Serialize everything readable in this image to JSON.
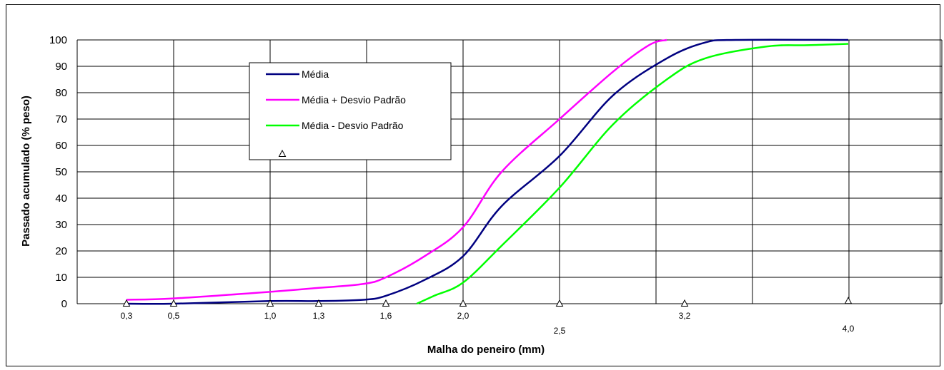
{
  "chart_data": {
    "type": "line",
    "xlabel": "Malha do peneiro (mm)",
    "ylabel": "Passado acumulado (% peso)",
    "ylim": [
      0,
      100
    ],
    "yticks": [
      "0",
      "10",
      "20",
      "30",
      "40",
      "50",
      "60",
      "70",
      "80",
      "90",
      "100"
    ],
    "grid": true,
    "legend_position": "top-left",
    "x_tick_labels": [
      {
        "label": "0,3",
        "x": 0.3
      },
      {
        "label": "0,5",
        "x": 0.5
      },
      {
        "label": "1,0",
        "x": 1.0
      },
      {
        "label": "1,3",
        "x": 1.3
      },
      {
        "label": "1,6",
        "x": 1.6
      },
      {
        "label": "2,0",
        "x": 2.0
      },
      {
        "label": "2,5",
        "x": 2.5
      },
      {
        "label": "3,2",
        "x": 3.2
      },
      {
        "label": "4,0",
        "x": 4.0
      }
    ],
    "series": [
      {
        "name": "Média",
        "color": "#000080",
        "points": [
          [
            0.3,
            0
          ],
          [
            0.5,
            0
          ],
          [
            1.0,
            1
          ],
          [
            1.3,
            1
          ],
          [
            1.5,
            1.5
          ],
          [
            1.6,
            3
          ],
          [
            1.8,
            9
          ],
          [
            2.0,
            18
          ],
          [
            2.2,
            37
          ],
          [
            2.5,
            56
          ],
          [
            2.8,
            79
          ],
          [
            3.1,
            93
          ],
          [
            3.3,
            99
          ],
          [
            3.45,
            100
          ],
          [
            4.0,
            100
          ]
        ]
      },
      {
        "name": "Média + Desvio Padrão",
        "color": "#FF00FF",
        "points": [
          [
            0.3,
            1.5
          ],
          [
            0.5,
            2
          ],
          [
            1.0,
            4.5
          ],
          [
            1.3,
            6
          ],
          [
            1.5,
            7.5
          ],
          [
            1.6,
            10
          ],
          [
            1.8,
            18
          ],
          [
            2.0,
            29
          ],
          [
            2.2,
            50
          ],
          [
            2.5,
            70
          ],
          [
            2.8,
            88
          ],
          [
            3.0,
            98
          ],
          [
            3.1,
            100
          ]
        ]
      },
      {
        "name": "Média - Desvio Padrão",
        "color": "#00FF00",
        "points": [
          [
            1.76,
            0
          ],
          [
            1.85,
            3
          ],
          [
            2.0,
            8
          ],
          [
            2.2,
            22
          ],
          [
            2.5,
            44
          ],
          [
            2.8,
            68
          ],
          [
            3.1,
            85
          ],
          [
            3.3,
            93
          ],
          [
            3.6,
            97.5
          ],
          [
            3.8,
            98
          ],
          [
            4.0,
            98.5
          ]
        ]
      },
      {
        "name": "",
        "marker": "triangle",
        "color": "#000000",
        "points": [
          [
            0.3,
            0
          ],
          [
            0.5,
            0
          ],
          [
            1.0,
            0
          ],
          [
            1.3,
            0
          ],
          [
            1.6,
            0
          ],
          [
            2.0,
            0
          ],
          [
            2.5,
            0
          ],
          [
            3.2,
            0
          ],
          [
            4.0,
            1
          ]
        ]
      }
    ]
  }
}
